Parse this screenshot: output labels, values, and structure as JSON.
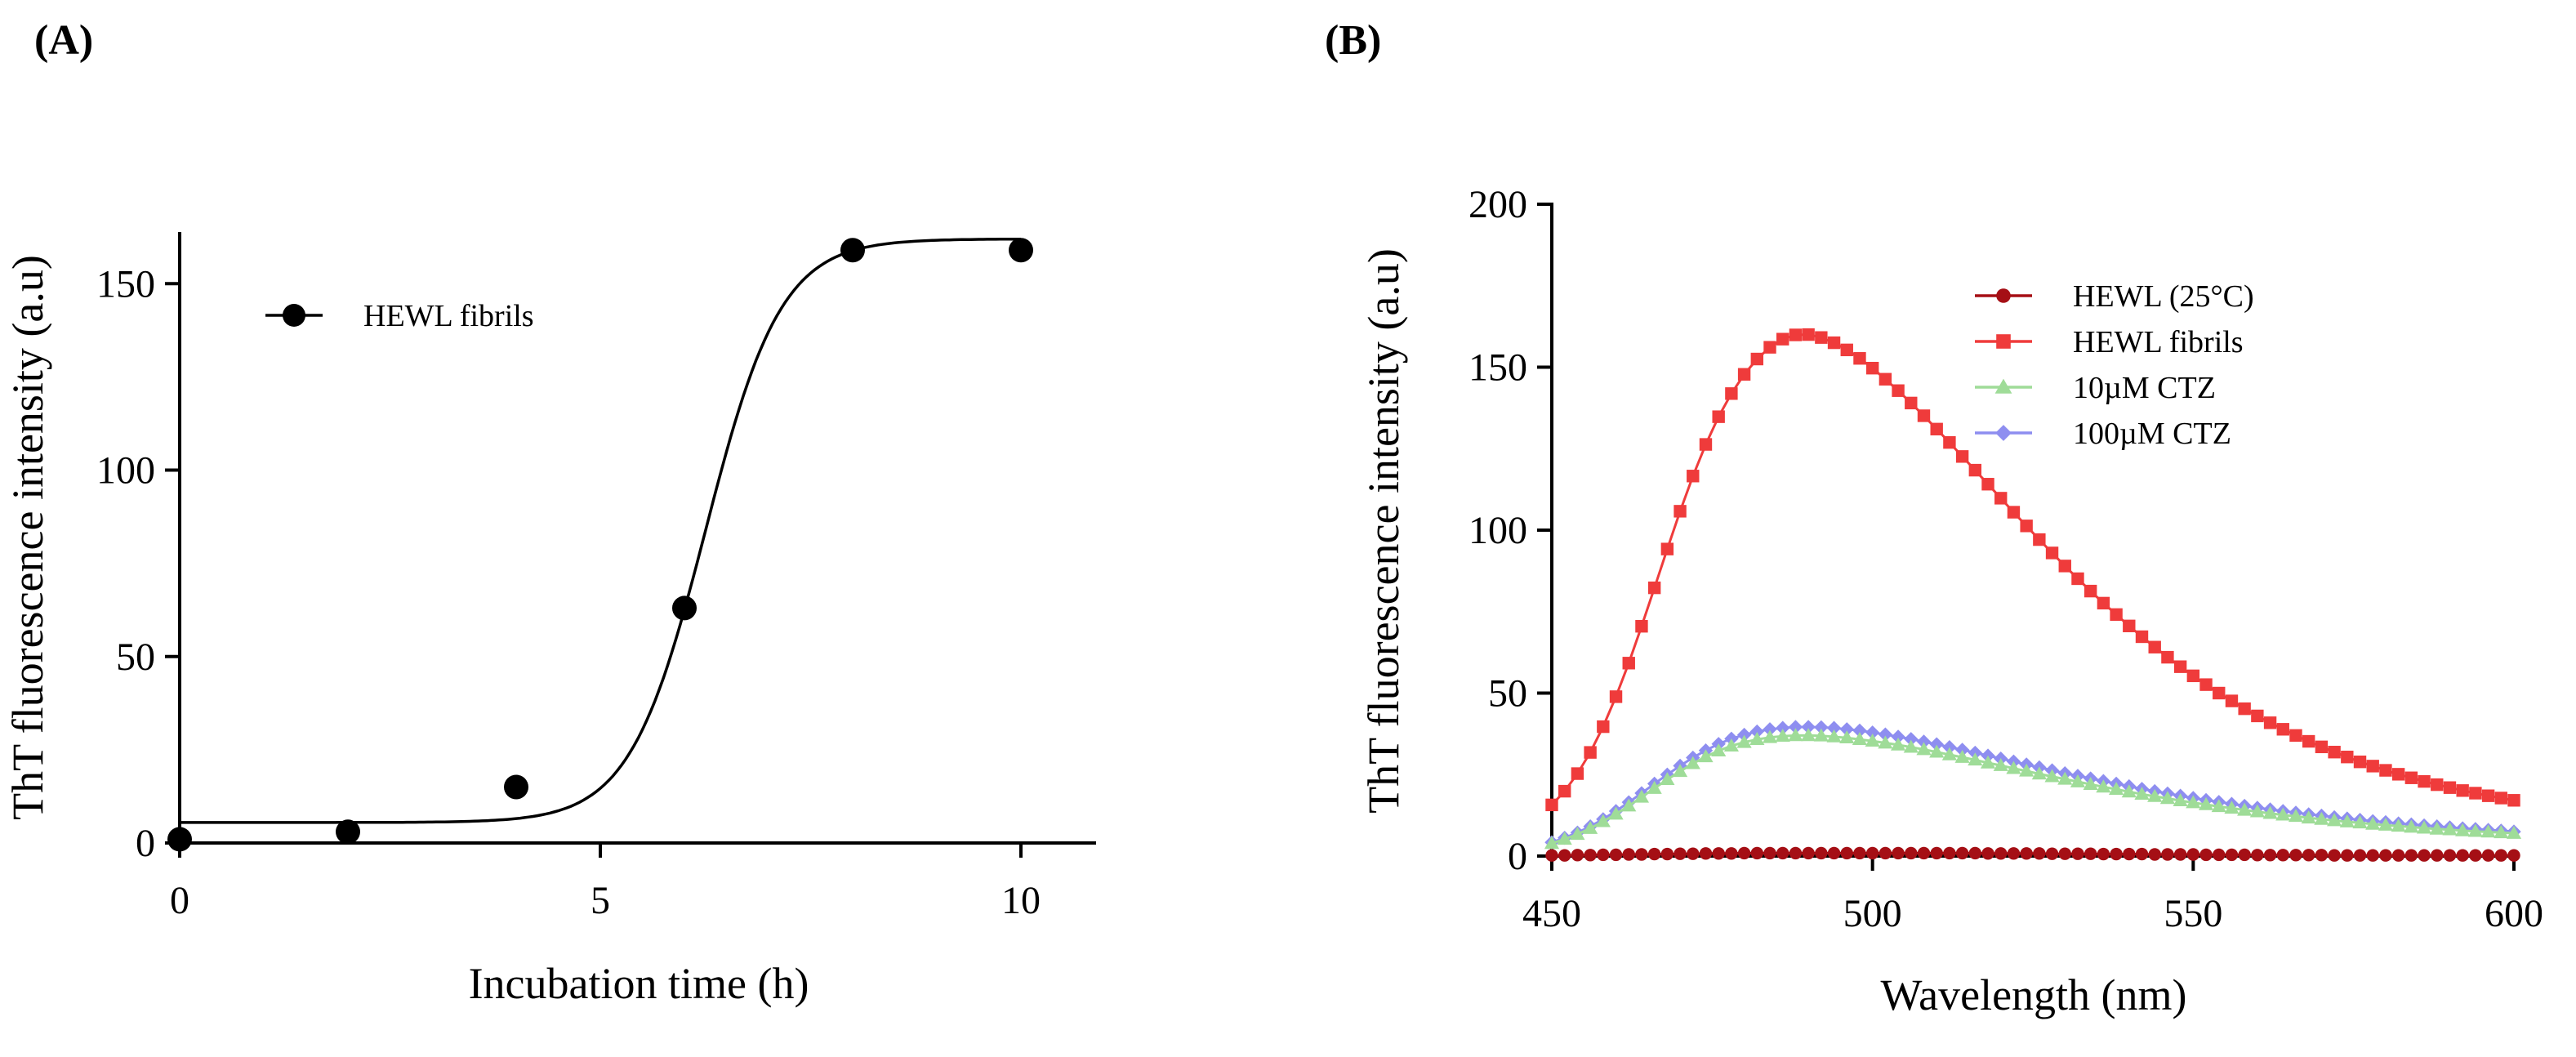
{
  "chart_data": [
    {
      "panel_label": "(A)",
      "type": "scatter",
      "title": "",
      "xlabel": "Incubation time (h)",
      "ylabel": "ThT fluorescence intensity (a.u)",
      "xlim": [
        0,
        11
      ],
      "ylim": [
        0,
        170
      ],
      "xticks": [
        0,
        5,
        10
      ],
      "yticks": [
        0,
        50,
        100,
        150
      ],
      "grid": false,
      "legend_position": "top-left",
      "series": [
        {
          "name": "HEWL fibrils",
          "color": "#000000",
          "marker": "circle",
          "x": [
            0,
            2,
            4,
            6,
            8,
            10
          ],
          "y": [
            1,
            3,
            15,
            63,
            159,
            159
          ]
        }
      ],
      "fit": {
        "model": "sigmoidal (Boltzmann)",
        "bottom": 5.5,
        "top": 162,
        "x_mid": 6.25,
        "slope": 0.45,
        "color": "#000000"
      }
    },
    {
      "panel_label": "(B)",
      "type": "line",
      "title": "",
      "xlabel": "Wavelength (nm)",
      "ylabel": "ThT fluorescence intensity (a.u)",
      "xlim": [
        450,
        600
      ],
      "ylim": [
        0,
        200
      ],
      "xticks": [
        450,
        500,
        550,
        600
      ],
      "yticks": [
        0,
        50,
        100,
        150,
        200
      ],
      "grid": false,
      "legend_position": "top-right",
      "x_start": 450,
      "x_step": 2,
      "series": [
        {
          "name": "HEWL (25°C)",
          "color": "#a50f15",
          "marker": "circle",
          "values": [
            0.2,
            0.2,
            0.3,
            0.3,
            0.4,
            0.4,
            0.5,
            0.5,
            0.6,
            0.6,
            0.7,
            0.7,
            0.8,
            0.8,
            0.8,
            0.9,
            0.9,
            0.9,
            0.9,
            0.9,
            0.9,
            0.9,
            0.9,
            0.9,
            0.9,
            0.9,
            0.9,
            0.9,
            0.9,
            0.9,
            0.9,
            0.9,
            0.9,
            0.9,
            0.8,
            0.8,
            0.8,
            0.8,
            0.8,
            0.7,
            0.7,
            0.7,
            0.7,
            0.6,
            0.6,
            0.6,
            0.6,
            0.5,
            0.5,
            0.5,
            0.5,
            0.4,
            0.4,
            0.4,
            0.4,
            0.3,
            0.3,
            0.3,
            0.3,
            0.3,
            0.3,
            0.2,
            0.2,
            0.2,
            0.2,
            0.2,
            0.2,
            0.2,
            0.2,
            0.2,
            0.2,
            0.2,
            0.2,
            0.2,
            0.2,
            0.2
          ]
        },
        {
          "name": "HEWL fibrils",
          "color": "#ef3b3b",
          "marker": "square",
          "values": [
            15.7,
            19.9,
            25.3,
            31.8,
            39.7,
            48.9,
            59.2,
            70.5,
            82.3,
            94.2,
            105.8,
            116.6,
            126.3,
            134.8,
            141.9,
            147.8,
            152.5,
            156.1,
            158.6,
            159.9,
            160.0,
            159.1,
            157.5,
            155.3,
            152.7,
            149.7,
            146.3,
            142.8,
            139.0,
            135.1,
            131.0,
            126.9,
            122.6,
            118.4,
            114.1,
            109.8,
            105.5,
            101.3,
            97.1,
            93.0,
            89.0,
            85.1,
            81.3,
            77.6,
            74.1,
            70.6,
            67.3,
            64.1,
            61.0,
            58.1,
            55.3,
            52.6,
            50.0,
            47.6,
            45.2,
            43.0,
            40.9,
            38.9,
            37.0,
            35.2,
            33.5,
            31.9,
            30.4,
            28.9,
            27.6,
            26.3,
            25.1,
            24.0,
            22.9,
            21.9,
            21.0,
            20.1,
            19.3,
            18.5,
            17.8,
            17.1
          ]
        },
        {
          "name": "10µM CTZ",
          "color": "#9fdc98",
          "marker": "triangle",
          "values": [
            3.9,
            5.2,
            6.7,
            8.5,
            10.6,
            12.9,
            15.4,
            18.1,
            20.8,
            23.5,
            26.0,
            28.4,
            30.5,
            32.3,
            33.8,
            34.9,
            35.8,
            36.4,
            36.8,
            37.0,
            37.0,
            36.9,
            36.6,
            36.3,
            35.8,
            35.3,
            34.7,
            34.1,
            33.4,
            32.7,
            31.9,
            31.1,
            30.3,
            29.5,
            28.6,
            27.8,
            26.9,
            26.1,
            25.2,
            24.4,
            23.6,
            22.8,
            22.0,
            21.2,
            20.5,
            19.7,
            19.0,
            18.3,
            17.7,
            17.0,
            16.4,
            15.8,
            15.2,
            14.7,
            14.1,
            13.6,
            13.1,
            12.6,
            12.2,
            11.7,
            11.3,
            10.9,
            10.5,
            10.2,
            9.8,
            9.5,
            9.2,
            8.9,
            8.6,
            8.3,
            8.1,
            7.8,
            7.6,
            7.4,
            7.2,
            7.0
          ]
        },
        {
          "name": "100µM CTZ",
          "color": "#8e8ef0",
          "marker": "diamond",
          "values": [
            4.2,
            5.6,
            7.2,
            9.1,
            11.3,
            13.8,
            16.5,
            19.3,
            22.2,
            25.0,
            27.7,
            30.2,
            32.4,
            34.4,
            36.0,
            37.2,
            38.2,
            38.9,
            39.3,
            39.6,
            39.6,
            39.5,
            39.3,
            38.9,
            38.5,
            37.9,
            37.3,
            36.6,
            35.9,
            35.1,
            34.3,
            33.4,
            32.6,
            31.7,
            30.8,
            29.9,
            29.0,
            28.1,
            27.2,
            26.3,
            25.4,
            24.6,
            23.8,
            23.0,
            22.2,
            21.4,
            20.6,
            19.9,
            19.2,
            18.5,
            17.8,
            17.2,
            16.6,
            16.0,
            15.4,
            14.8,
            14.3,
            13.8,
            13.3,
            12.8,
            12.4,
            11.9,
            11.5,
            11.1,
            10.7,
            10.4,
            10.0,
            9.7,
            9.4,
            9.1,
            8.8,
            8.5,
            8.3,
            8.0,
            7.8,
            7.5
          ]
        }
      ]
    }
  ]
}
